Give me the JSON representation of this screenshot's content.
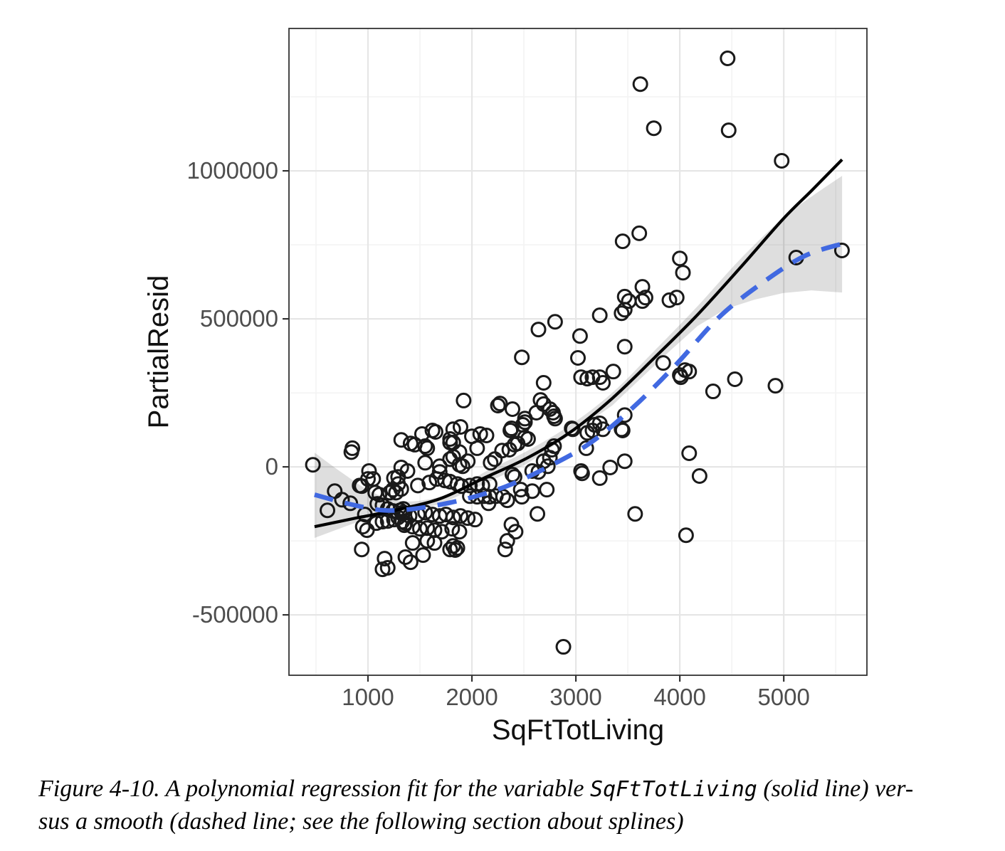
{
  "figure": {
    "caption": {
      "prefix": "Figure 4-10. A polynomial regression fit for the variable ",
      "code": "SqFtTotLiving",
      "after_code": " (solid line) ver-",
      "line2": "sus a smooth (dashed line; see the following section about splines)"
    }
  },
  "chart_data": {
    "type": "scatter",
    "title": "",
    "xlabel": "SqFtTotLiving",
    "ylabel": "PartialResid",
    "xlim": [
      240,
      5800
    ],
    "ylim": [
      -704000,
      1481000
    ],
    "grid": true,
    "legend_position": "none",
    "x_ticks": [
      1000,
      2000,
      3000,
      4000,
      5000
    ],
    "x_tick_labels": [
      "1000",
      "2000",
      "3000",
      "4000",
      "5000"
    ],
    "x_minor_ticks": [
      500,
      1500,
      2500,
      3500,
      4500,
      5500
    ],
    "y_ticks": [
      1000000,
      500000,
      0,
      -500000
    ],
    "y_tick_labels": [
      "1000000",
      "500000",
      "0",
      "-500000"
    ],
    "y_minor_ticks": [
      1250000,
      750000,
      250000,
      -250000
    ],
    "colors": {
      "point_stroke": "#1a1a1a",
      "grid_major": "#e6e6e6",
      "grid_minor": "#f3f3f3",
      "panel_border": "#333333",
      "tick": "#333333",
      "tick_label": "#4d4d4d",
      "axis_title": "#111111",
      "band": "#000000",
      "band_opacity": 0.13
    },
    "series": [
      {
        "name": "polynomial fit (solid line)",
        "style": "solid",
        "color": "#000000",
        "points": [
          [
            486,
            -202000
          ],
          [
            884,
            -173000
          ],
          [
            1294,
            -144000
          ],
          [
            1705,
            -106000
          ],
          [
            2116,
            -38000
          ],
          [
            2527,
            29000
          ],
          [
            2938,
            115000
          ],
          [
            3349,
            231000
          ],
          [
            3760,
            370000
          ],
          [
            4171,
            514000
          ],
          [
            4582,
            673000
          ],
          [
            4993,
            837000
          ],
          [
            5267,
            933000
          ],
          [
            5561,
            1038000
          ]
        ]
      },
      {
        "name": "smooth spline (dashed line)",
        "style": "dashed",
        "color": "#4169e1",
        "points": [
          [
            486,
            -94000
          ],
          [
            815,
            -125000
          ],
          [
            1158,
            -147000
          ],
          [
            1500,
            -139000
          ],
          [
            1911,
            -111000
          ],
          [
            2322,
            -67000
          ],
          [
            2733,
            0
          ],
          [
            3144,
            82000
          ],
          [
            3554,
            202000
          ],
          [
            3965,
            346000
          ],
          [
            4376,
            505000
          ],
          [
            4787,
            620000
          ],
          [
            5198,
            712000
          ],
          [
            5575,
            755000
          ]
        ]
      }
    ],
    "confidence_band": {
      "upper": [
        [
          486,
          48000
        ],
        [
          747,
          -19000
        ],
        [
          1021,
          -82000
        ],
        [
          1294,
          -115000
        ],
        [
          1568,
          -111000
        ],
        [
          1842,
          -82000
        ],
        [
          2116,
          -19000
        ],
        [
          2527,
          53000
        ],
        [
          2938,
          139000
        ],
        [
          3349,
          250000
        ],
        [
          3760,
          394000
        ],
        [
          4171,
          543000
        ],
        [
          4582,
          702000
        ],
        [
          4993,
          841000
        ],
        [
          5267,
          913000
        ],
        [
          5561,
          983000
        ]
      ],
      "lower": [
        [
          486,
          -240000
        ],
        [
          884,
          -188000
        ],
        [
          1294,
          -159000
        ],
        [
          1705,
          -125000
        ],
        [
          2116,
          -58000
        ],
        [
          2527,
          10000
        ],
        [
          2938,
          106000
        ],
        [
          3349,
          207000
        ],
        [
          3623,
          298000
        ],
        [
          3897,
          389000
        ],
        [
          4171,
          476000
        ],
        [
          4445,
          534000
        ],
        [
          4719,
          565000
        ],
        [
          4993,
          587000
        ],
        [
          5267,
          596000
        ],
        [
          5561,
          589000
        ]
      ]
    },
    "points": [
      [
        470,
        7000
      ],
      [
        840,
        50000
      ],
      [
        1010,
        -14000
      ],
      [
        1000,
        -41000
      ],
      [
        1050,
        -41000
      ],
      [
        680,
        -82000
      ],
      [
        750,
        -111000
      ],
      [
        830,
        -123000
      ],
      [
        610,
        -147000
      ],
      [
        920,
        -63000
      ],
      [
        940,
        -65000
      ],
      [
        1070,
        -87000
      ],
      [
        1110,
        -94000
      ],
      [
        1250,
        -38000
      ],
      [
        1290,
        -34000
      ],
      [
        1240,
        -77000
      ],
      [
        1270,
        -87000
      ],
      [
        1320,
        -75000
      ],
      [
        1210,
        -87000
      ],
      [
        1090,
        -125000
      ],
      [
        1140,
        -130000
      ],
      [
        1190,
        -142000
      ],
      [
        1240,
        -149000
      ],
      [
        1310,
        -147000
      ],
      [
        1340,
        -142000
      ],
      [
        1330,
        -159000
      ],
      [
        1290,
        -171000
      ],
      [
        1250,
        -178000
      ],
      [
        1190,
        -183000
      ],
      [
        1140,
        -185000
      ],
      [
        1080,
        -190000
      ],
      [
        970,
        -161000
      ],
      [
        950,
        -202000
      ],
      [
        990,
        -214000
      ],
      [
        940,
        -279000
      ],
      [
        1160,
        -310000
      ],
      [
        1190,
        -341000
      ],
      [
        1140,
        -346000
      ],
      [
        1410,
        -322000
      ],
      [
        1330,
        -185000
      ],
      [
        1350,
        -197000
      ],
      [
        1450,
        75000
      ],
      [
        1570,
        63000
      ],
      [
        1790,
        82000
      ],
      [
        1880,
        50000
      ],
      [
        2050,
        63000
      ],
      [
        1550,
        14000
      ],
      [
        1690,
        2000
      ],
      [
        1690,
        -17000
      ],
      [
        1790,
        26000
      ],
      [
        1820,
        34000
      ],
      [
        1880,
        7000
      ],
      [
        1910,
        2000
      ],
      [
        1960,
        19000
      ],
      [
        2220,
        26000
      ],
      [
        2180,
        14000
      ],
      [
        1320,
        -2000
      ],
      [
        1380,
        -14000
      ],
      [
        1290,
        -58000
      ],
      [
        1480,
        -63000
      ],
      [
        1590,
        -53000
      ],
      [
        1660,
        -41000
      ],
      [
        1740,
        -46000
      ],
      [
        1790,
        -50000
      ],
      [
        1860,
        -58000
      ],
      [
        1900,
        -65000
      ],
      [
        1980,
        -63000
      ],
      [
        2050,
        -58000
      ],
      [
        2100,
        -63000
      ],
      [
        2170,
        -58000
      ],
      [
        1980,
        -99000
      ],
      [
        2050,
        -101000
      ],
      [
        2120,
        -99000
      ],
      [
        2170,
        -101000
      ],
      [
        2230,
        -99000
      ],
      [
        1340,
        -154000
      ],
      [
        1400,
        -166000
      ],
      [
        1480,
        -161000
      ],
      [
        1550,
        -154000
      ],
      [
        1620,
        -161000
      ],
      [
        1690,
        -166000
      ],
      [
        1750,
        -161000
      ],
      [
        1820,
        -171000
      ],
      [
        1890,
        -166000
      ],
      [
        1960,
        -173000
      ],
      [
        2030,
        -178000
      ],
      [
        1360,
        -190000
      ],
      [
        1430,
        -202000
      ],
      [
        1500,
        -209000
      ],
      [
        1570,
        -207000
      ],
      [
        1640,
        -214000
      ],
      [
        1710,
        -219000
      ],
      [
        1810,
        -209000
      ],
      [
        1880,
        -219000
      ],
      [
        1430,
        -257000
      ],
      [
        1570,
        -250000
      ],
      [
        1640,
        -257000
      ],
      [
        1820,
        -267000
      ],
      [
        1860,
        -274000
      ],
      [
        1530,
        -298000
      ],
      [
        1360,
        -305000
      ],
      [
        1790,
        -279000
      ],
      [
        1840,
        -281000
      ],
      [
        1920,
        224000
      ],
      [
        2250,
        207000
      ],
      [
        2270,
        214000
      ],
      [
        1650,
        118000
      ],
      [
        1820,
        127000
      ],
      [
        1890,
        135000
      ],
      [
        1320,
        91000
      ],
      [
        1520,
        111000
      ],
      [
        1620,
        123000
      ],
      [
        1790,
        94000
      ],
      [
        1820,
        82000
      ],
      [
        2000,
        103000
      ],
      [
        2080,
        111000
      ],
      [
        2140,
        106000
      ],
      [
        850,
        63000
      ],
      [
        1410,
        79000
      ],
      [
        1550,
        70000
      ],
      [
        2370,
        123000
      ],
      [
        2510,
        99000
      ],
      [
        2290,
        55000
      ],
      [
        2360,
        58000
      ],
      [
        2410,
        75000
      ],
      [
        2440,
        79000
      ],
      [
        2540,
        94000
      ],
      [
        2790,
        70000
      ],
      [
        2770,
        58000
      ],
      [
        2690,
        19000
      ],
      [
        2730,
        2000
      ],
      [
        2750,
        31000
      ],
      [
        2390,
        -26000
      ],
      [
        2410,
        -34000
      ],
      [
        2580,
        -14000
      ],
      [
        2640,
        -17000
      ],
      [
        2970,
        127000
      ],
      [
        3110,
        115000
      ],
      [
        3160,
        123000
      ],
      [
        3260,
        127000
      ],
      [
        3450,
        123000
      ],
      [
        3100,
        63000
      ],
      [
        3050,
        -14000
      ],
      [
        3060,
        -22000
      ],
      [
        3330,
        -2000
      ],
      [
        3470,
        19000
      ],
      [
        3230,
        -38000
      ],
      [
        2470,
        -77000
      ],
      [
        2480,
        -101000
      ],
      [
        2580,
        -82000
      ],
      [
        2720,
        -77000
      ],
      [
        2300,
        -101000
      ],
      [
        2340,
        -113000
      ],
      [
        2160,
        -123000
      ],
      [
        2630,
        -159000
      ],
      [
        2380,
        -195000
      ],
      [
        2420,
        -219000
      ],
      [
        2340,
        -250000
      ],
      [
        3570,
        -159000
      ],
      [
        2880,
        -608000
      ],
      [
        2320,
        -279000
      ],
      [
        2640,
        464000
      ],
      [
        2800,
        490000
      ],
      [
        2480,
        370000
      ],
      [
        3230,
        512000
      ],
      [
        3470,
        531000
      ],
      [
        3440,
        519000
      ],
      [
        3510,
        560000
      ],
      [
        3640,
        560000
      ],
      [
        3900,
        563000
      ],
      [
        3040,
        442000
      ],
      [
        3470,
        406000
      ],
      [
        3020,
        368000
      ],
      [
        2690,
        284000
      ],
      [
        3050,
        303000
      ],
      [
        3110,
        298000
      ],
      [
        3160,
        303000
      ],
      [
        3230,
        303000
      ],
      [
        3260,
        284000
      ],
      [
        3360,
        322000
      ],
      [
        3840,
        351000
      ],
      [
        4000,
        310000
      ],
      [
        4050,
        327000
      ],
      [
        2390,
        195000
      ],
      [
        2660,
        226000
      ],
      [
        2690,
        212000
      ],
      [
        2750,
        195000
      ],
      [
        2780,
        183000
      ],
      [
        2790,
        171000
      ],
      [
        2800,
        163000
      ],
      [
        2620,
        183000
      ],
      [
        2510,
        163000
      ],
      [
        2510,
        151000
      ],
      [
        2380,
        130000
      ],
      [
        2490,
        142000
      ],
      [
        2960,
        130000
      ],
      [
        3180,
        142000
      ],
      [
        3230,
        147000
      ],
      [
        3470,
        175000
      ],
      [
        3440,
        127000
      ],
      [
        3640,
        608000
      ],
      [
        3670,
        572000
      ],
      [
        3470,
        575000
      ],
      [
        4460,
        1380000
      ],
      [
        3620,
        1293000
      ],
      [
        3750,
        1144000
      ],
      [
        4470,
        1137000
      ],
      [
        4980,
        1034000
      ],
      [
        3450,
        762000
      ],
      [
        3610,
        789000
      ],
      [
        4000,
        704000
      ],
      [
        4030,
        656000
      ],
      [
        3970,
        572000
      ],
      [
        5120,
        707000
      ],
      [
        5560,
        731000
      ],
      [
        4090,
        322000
      ],
      [
        4010,
        303000
      ],
      [
        4530,
        296000
      ],
      [
        4320,
        255000
      ],
      [
        4920,
        274000
      ],
      [
        4090,
        46000
      ],
      [
        4190,
        -31000
      ],
      [
        4060,
        -231000
      ]
    ]
  }
}
